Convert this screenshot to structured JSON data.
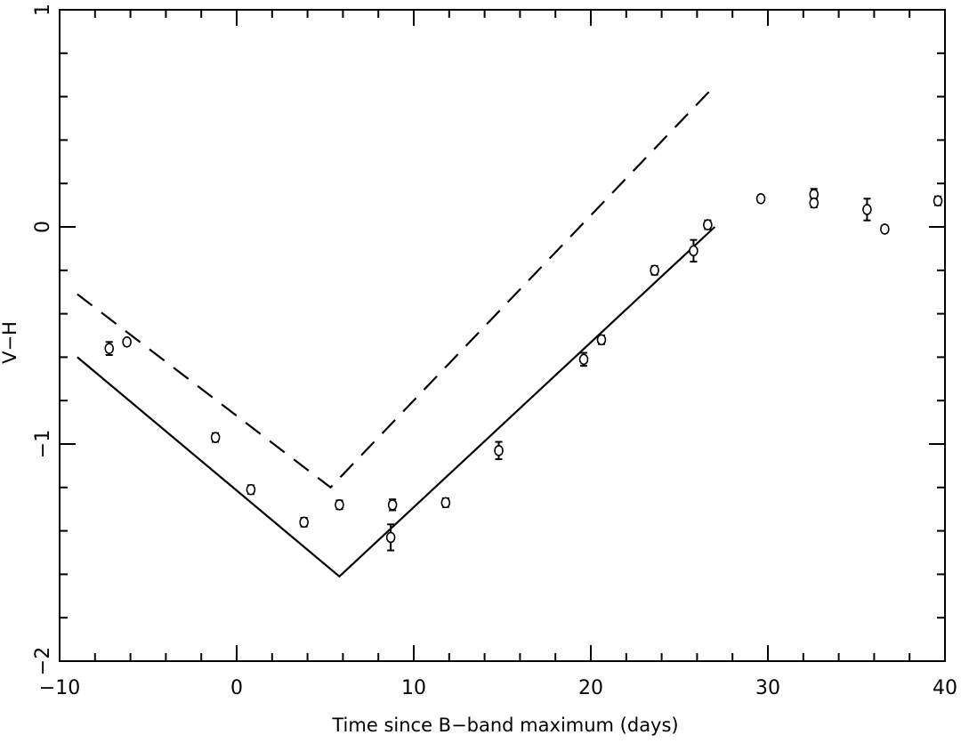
{
  "chart_data": {
    "type": "scatter",
    "xlabel": "Time since B−band maximum (days)",
    "ylabel": "V−H",
    "xlim": [
      -10,
      40
    ],
    "ylim": [
      1,
      -2
    ],
    "y_axis_inverted": true,
    "grid": false,
    "x_ticks": [
      {
        "value": -10,
        "label": "−10"
      },
      {
        "value": 0,
        "label": "0"
      },
      {
        "value": 10,
        "label": "10"
      },
      {
        "value": 20,
        "label": "20"
      },
      {
        "value": 30,
        "label": "30"
      },
      {
        "value": 40,
        "label": "40"
      }
    ],
    "y_ticks": [
      {
        "value": 1,
        "label": "1"
      },
      {
        "value": 0,
        "label": "0"
      },
      {
        "value": -1,
        "label": "−1"
      },
      {
        "value": -2,
        "label": "−2"
      }
    ],
    "x_minor_step": 2,
    "y_minor_step": 0.2,
    "points": [
      {
        "x": -7.2,
        "y": -0.56,
        "err": 0.03
      },
      {
        "x": -6.2,
        "y": -0.53,
        "err": 0.012
      },
      {
        "x": -1.2,
        "y": -0.97,
        "err": 0.02
      },
      {
        "x": 0.8,
        "y": -1.21,
        "err": 0.02
      },
      {
        "x": 3.8,
        "y": -1.36,
        "err": 0.02
      },
      {
        "x": 5.8,
        "y": -1.28,
        "err": 0.02
      },
      {
        "x": 8.8,
        "y": -1.28,
        "err": 0.025
      },
      {
        "x": 8.7,
        "y": -1.43,
        "err": 0.06
      },
      {
        "x": 11.8,
        "y": -1.27,
        "err": 0.02
      },
      {
        "x": 14.8,
        "y": -1.03,
        "err": 0.04
      },
      {
        "x": 19.6,
        "y": -0.61,
        "err": 0.03
      },
      {
        "x": 20.6,
        "y": -0.52,
        "err": 0.02
      },
      {
        "x": 23.6,
        "y": -0.2,
        "err": 0.02
      },
      {
        "x": 25.8,
        "y": -0.11,
        "err": 0.05
      },
      {
        "x": 26.6,
        "y": 0.01,
        "err": 0.02
      },
      {
        "x": 29.6,
        "y": 0.13,
        "err": 0.015
      },
      {
        "x": 32.6,
        "y": 0.15,
        "err": 0.025
      },
      {
        "x": 32.6,
        "y": 0.11,
        "err": 0.02
      },
      {
        "x": 35.6,
        "y": 0.08,
        "err": 0.05
      },
      {
        "x": 36.6,
        "y": -0.01,
        "err": 0.015
      },
      {
        "x": 39.6,
        "y": 0.12,
        "err": 0.02
      }
    ],
    "lines": [
      {
        "style": "solid",
        "x": [
          -9,
          5.8,
          27
        ],
        "y": [
          -0.6,
          -1.61,
          0
        ]
      },
      {
        "style": "dashed",
        "x": [
          -9,
          5.3,
          27
        ],
        "y": [
          -0.31,
          -1.2,
          0.65
        ]
      }
    ]
  }
}
